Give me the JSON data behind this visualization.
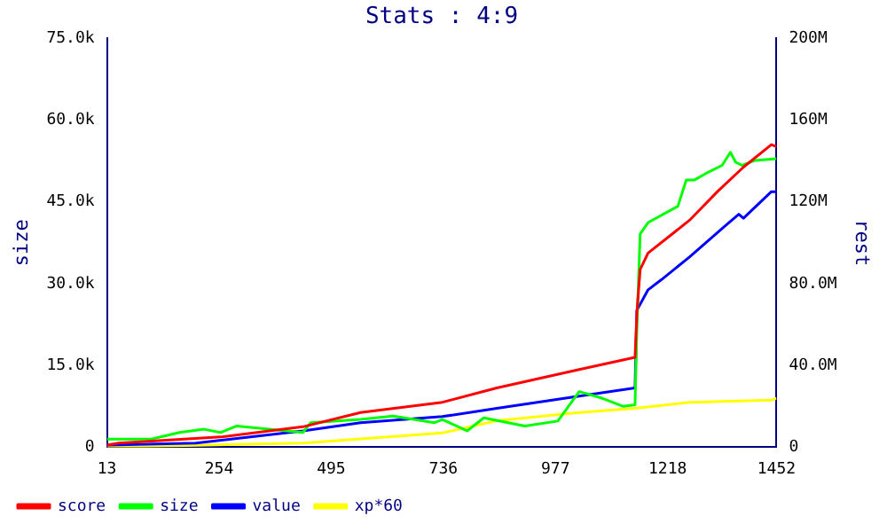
{
  "chart_data": {
    "type": "line",
    "title": "Stats : 4:9",
    "ylabel": "size",
    "y2label": "rest",
    "xlim": [
      13,
      1452
    ],
    "xticks": [
      13,
      254,
      495,
      736,
      977,
      1218,
      1452
    ],
    "ylim": [
      0,
      75000
    ],
    "yticks": [
      {
        "value": 0,
        "label": "0"
      },
      {
        "value": 15000,
        "label": "15.0k"
      },
      {
        "value": 30000,
        "label": "30.0k"
      },
      {
        "value": 45000,
        "label": "45.0k"
      },
      {
        "value": 60000,
        "label": "60.0k"
      },
      {
        "value": 75000,
        "label": "75.0k"
      }
    ],
    "y2lim": [
      0,
      200000000
    ],
    "y2ticks": [
      {
        "value": 0,
        "label": "0"
      },
      {
        "value": 40000000,
        "label": "40.0M"
      },
      {
        "value": 80000000,
        "label": "80.0M"
      },
      {
        "value": 120000000,
        "label": "120M"
      },
      {
        "value": 160000000,
        "label": "160M"
      },
      {
        "value": 200000000,
        "label": "200M"
      }
    ],
    "legend": "bottom",
    "grid": false,
    "marker": "none",
    "line_style": "solid",
    "series": [
      {
        "name": "score",
        "color": "#ff0000",
        "axis": "y2",
        "x": [
          13,
          38,
          257,
          434,
          558,
          734,
          851,
          1028,
          1148,
          1152,
          1159,
          1176,
          1265,
          1325,
          1381,
          1441,
          1452
        ],
        "values": [
          1000000,
          2000000,
          5000000,
          10000000,
          17000000,
          22000000,
          29000000,
          38000000,
          44000000,
          66000000,
          87000000,
          95000000,
          111000000,
          125000000,
          137000000,
          148000000,
          147000000
        ]
      },
      {
        "name": "size",
        "color": "#00ff00",
        "axis": "y",
        "x": [
          13,
          108,
          169,
          222,
          257,
          292,
          434,
          451,
          558,
          628,
          717,
          734,
          787,
          823,
          911,
          982,
          1028,
          1077,
          1123,
          1148,
          1152,
          1159,
          1176,
          1240,
          1258,
          1275,
          1300,
          1335,
          1353,
          1364,
          1378,
          1406,
          1452
        ],
        "values": [
          1500,
          1500,
          2700,
          3300,
          2700,
          3900,
          2700,
          4500,
          5100,
          5700,
          4500,
          5100,
          3000,
          5400,
          3900,
          4800,
          10200,
          9000,
          7500,
          7800,
          22100,
          39100,
          41200,
          44200,
          49000,
          49000,
          50200,
          51700,
          54100,
          52300,
          51700,
          52600,
          52900
        ]
      },
      {
        "name": "value",
        "color": "#0000ff",
        "axis": "y2",
        "x": [
          13,
          204,
          434,
          558,
          734,
          851,
          1028,
          1148,
          1152,
          1176,
          1205,
          1265,
          1325,
          1371,
          1381,
          1441,
          1452
        ],
        "values": [
          1000000,
          2000000,
          8000000,
          12000000,
          15000000,
          19000000,
          25000000,
          29000000,
          67000000,
          77000000,
          82000000,
          93000000,
          105000000,
          114000000,
          112000000,
          125000000,
          125000000
        ]
      },
      {
        "name": "xp*60",
        "color": "#ffff00",
        "axis": "y2",
        "x": [
          13,
          434,
          734,
          851,
          1028,
          1148,
          1265,
          1441,
          1452
        ],
        "values": [
          0,
          2000000,
          7000000,
          13000000,
          17000000,
          19000000,
          22000000,
          23000000,
          24000000
        ]
      }
    ]
  }
}
